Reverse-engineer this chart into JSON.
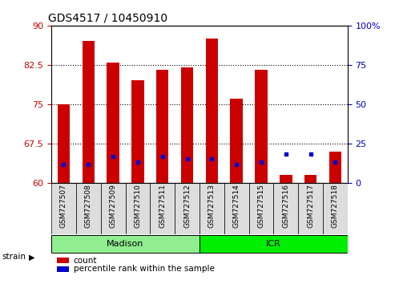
{
  "title": "GDS4517 / 10450910",
  "samples": [
    "GSM727507",
    "GSM727508",
    "GSM727509",
    "GSM727510",
    "GSM727511",
    "GSM727512",
    "GSM727513",
    "GSM727514",
    "GSM727515",
    "GSM727516",
    "GSM727517",
    "GSM727518"
  ],
  "red_values": [
    75.0,
    87.0,
    83.0,
    79.5,
    81.5,
    82.0,
    87.5,
    76.0,
    81.5,
    61.5,
    61.5,
    66.0
  ],
  "blue_values_left_axis": [
    63.5,
    63.5,
    65.0,
    64.0,
    65.0,
    64.5,
    64.5,
    63.5,
    64.0,
    65.5,
    65.5,
    64.0
  ],
  "ylim_left": [
    60,
    90
  ],
  "ylim_right": [
    0,
    100
  ],
  "yticks_left": [
    60,
    67.5,
    75,
    82.5,
    90
  ],
  "yticks_right": [
    0,
    25,
    50,
    75,
    100
  ],
  "strain_groups": [
    {
      "label": "Madison",
      "start": 0,
      "end": 6,
      "color": "#90EE90"
    },
    {
      "label": "ICR",
      "start": 6,
      "end": 12,
      "color": "#00EE00"
    }
  ],
  "red_color": "#CC0000",
  "blue_color": "#0000CC",
  "bar_bottom": 60,
  "legend_items": [
    {
      "label": "count",
      "color": "#CC0000"
    },
    {
      "label": "percentile rank within the sample",
      "color": "#0000CC"
    }
  ],
  "bg_color": "#FFFFFF",
  "tick_label_color_left": "#CC0000",
  "tick_label_color_right": "#0000BB",
  "bar_width": 0.5,
  "xtick_bg_color": "#DDDDDD"
}
